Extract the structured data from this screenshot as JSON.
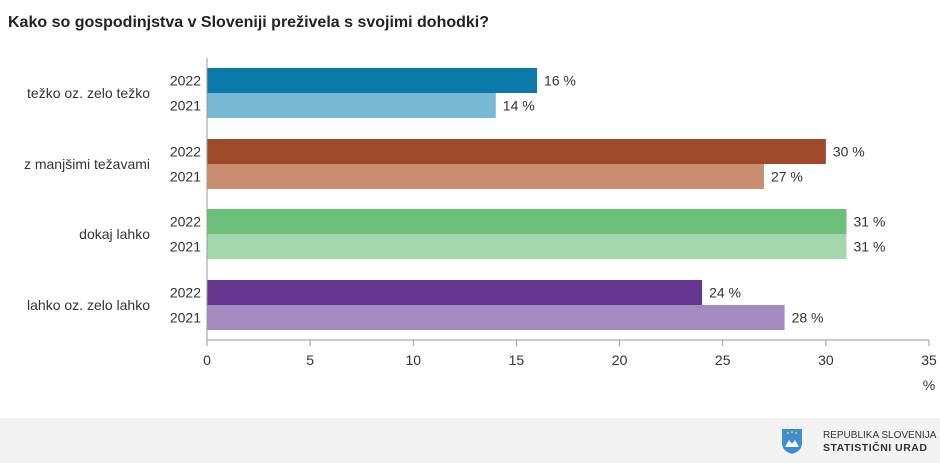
{
  "chart_data": {
    "type": "bar",
    "orientation": "horizontal",
    "title": "Kako so gospodinjstva v Sloveniji preživela s svojimi dohodki?",
    "xlabel": "%",
    "xlim": [
      0,
      35
    ],
    "xticks": [
      0,
      5,
      10,
      15,
      20,
      25,
      30,
      35
    ],
    "grid": false,
    "categories": [
      "težko oz. zelo težko",
      "z manjšimi težavami",
      "dokaj lahko",
      "lahko oz. zelo lahko"
    ],
    "series": [
      {
        "name": "2022",
        "values": [
          16,
          30,
          31,
          24
        ],
        "colors": [
          "#0a7aab",
          "#a0482a",
          "#6cc07a",
          "#653790"
        ]
      },
      {
        "name": "2021",
        "values": [
          14,
          27,
          31,
          28
        ],
        "colors": [
          "#78b9d6",
          "#c98e72",
          "#a4d7aa",
          "#a58ac1"
        ]
      }
    ],
    "value_suffix": " %"
  },
  "footer": {
    "line1": "REPUBLIKA SLOVENIJA",
    "line2": "STATISTIČNI URAD"
  }
}
